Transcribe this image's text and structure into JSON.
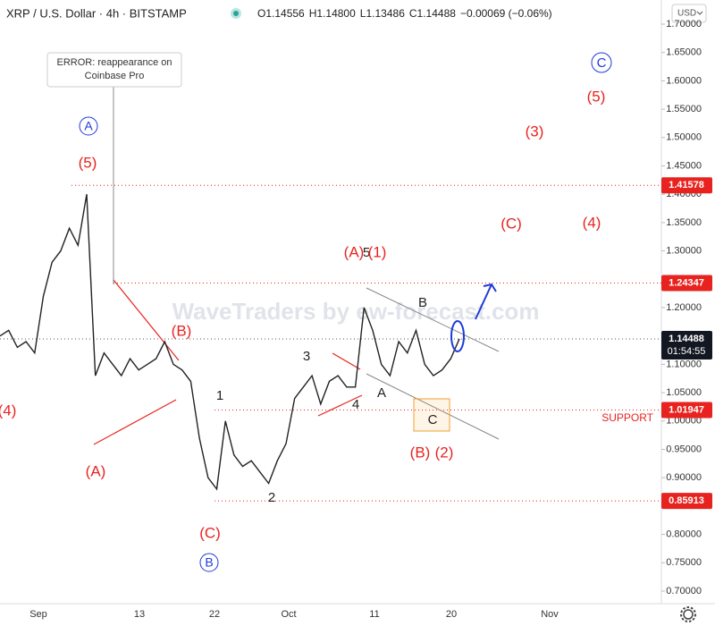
{
  "header": {
    "symbol": "XRP / U.S. Dollar · 4h · BITSTAMP",
    "ohlc": [
      {
        "key": "O",
        "value": "1.14556"
      },
      {
        "key": "H",
        "value": "1.14800"
      },
      {
        "key": "L",
        "value": "1.13486"
      },
      {
        "key": "C",
        "value": "1.14488"
      }
    ],
    "change": "−0.00069 (−0.06%)",
    "currency": "USD"
  },
  "price_axis": {
    "ylim": [
      0.7,
      1.7
    ],
    "ticks": [
      {
        "value": 1.7,
        "label": "1.70000"
      },
      {
        "value": 1.65,
        "label": "1.65000"
      },
      {
        "value": 1.6,
        "label": "1.60000"
      },
      {
        "value": 1.55,
        "label": "1.55000"
      },
      {
        "value": 1.5,
        "label": "1.50000"
      },
      {
        "value": 1.45,
        "label": "1.45000"
      },
      {
        "value": 1.4,
        "label": "1.40000"
      },
      {
        "value": 1.35,
        "label": "1.35000"
      },
      {
        "value": 1.3,
        "label": "1.30000"
      },
      {
        "value": 1.25,
        "label": "1.25000"
      },
      {
        "value": 1.2,
        "label": "1.20000"
      },
      {
        "value": 1.15,
        "label": "1.15000"
      },
      {
        "value": 1.1,
        "label": "1.10000"
      },
      {
        "value": 1.05,
        "label": "1.05000"
      },
      {
        "value": 1.0,
        "label": "1.00000"
      },
      {
        "value": 0.95,
        "label": "0.95000"
      },
      {
        "value": 0.9,
        "label": "0.90000"
      },
      {
        "value": 0.85,
        "label": "0.85000"
      },
      {
        "value": 0.8,
        "label": "0.80000"
      },
      {
        "value": 0.75,
        "label": "0.75000"
      },
      {
        "value": 0.7,
        "label": "0.70000"
      }
    ],
    "levels": [
      {
        "value": 1.41578,
        "label": "1.41578"
      },
      {
        "value": 1.24347,
        "label": "1.24347"
      },
      {
        "value": 1.01947,
        "label": "1.01947"
      },
      {
        "value": 0.85913,
        "label": "0.85913"
      }
    ],
    "current": {
      "value": 1.14488,
      "label": "1.14488",
      "countdown": "01:54:55"
    }
  },
  "time_axis": [
    "Sep",
    "13",
    "22",
    "Oct",
    "11",
    "20",
    "Nov"
  ],
  "price_series": {
    "closes": [
      1.15,
      1.16,
      1.13,
      1.14,
      1.12,
      1.22,
      1.28,
      1.3,
      1.34,
      1.31,
      1.4,
      1.08,
      1.12,
      1.1,
      1.08,
      1.11,
      1.09,
      1.1,
      1.11,
      1.14,
      1.1,
      1.09,
      1.07,
      0.97,
      0.9,
      0.88,
      1.0,
      0.94,
      0.92,
      0.93,
      0.91,
      0.89,
      0.93,
      0.96,
      1.04,
      1.06,
      1.08,
      1.03,
      1.07,
      1.08,
      1.06,
      1.06,
      1.2,
      1.16,
      1.1,
      1.08,
      1.14,
      1.12,
      1.16,
      1.1,
      1.08,
      1.09,
      1.11,
      1.145
    ]
  },
  "annotations": {
    "error_note": [
      "ERROR: reappearance on",
      "Coinbase Pro"
    ],
    "support": "SUPPORT",
    "watermark": "WaveTraders by ew-forecast.com",
    "waves": [
      "(5)",
      "A",
      "(4)",
      "(A)",
      "(B)",
      "(C)",
      "B",
      "1",
      "2",
      "3",
      "4",
      "5",
      "(A)",
      "(1)",
      "A",
      "B",
      "C",
      "(B)",
      "(2)",
      "(C)",
      "(4)",
      "(3)",
      "(5)",
      "C"
    ]
  }
}
